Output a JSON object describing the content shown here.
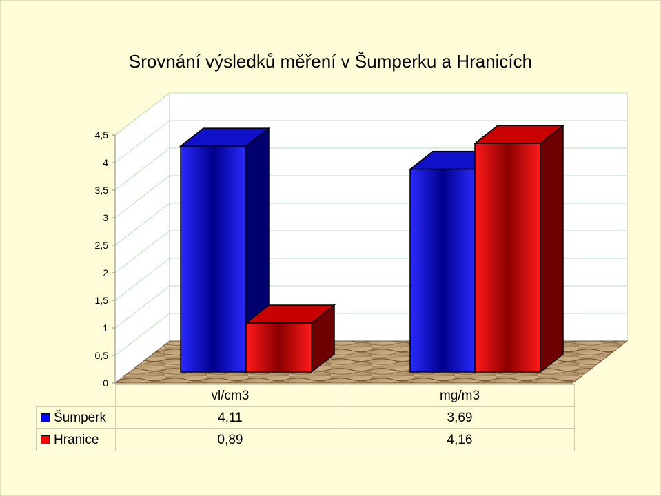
{
  "chart_data": {
    "type": "bar",
    "title": "Srovnání výsledků měření v Šumperku a Hranicích",
    "categories": [
      "vl/cm3",
      "mg/m3"
    ],
    "series": [
      {
        "name": "Šumperk",
        "values": [
          4.11,
          3.69
        ],
        "display": [
          "4,11",
          "3,69"
        ],
        "color": "#0000ff"
      },
      {
        "name": "Hranice",
        "values": [
          0.89,
          4.16
        ],
        "display": [
          "0,89",
          "4,16"
        ],
        "color": "#ff0000"
      }
    ],
    "ylim": [
      0,
      4.5
    ],
    "yticks": [
      "0",
      "0,5",
      "1",
      "1,5",
      "2",
      "2,5",
      "3",
      "3,5",
      "4",
      "4,5"
    ],
    "grid": true,
    "legend": "data-table"
  }
}
